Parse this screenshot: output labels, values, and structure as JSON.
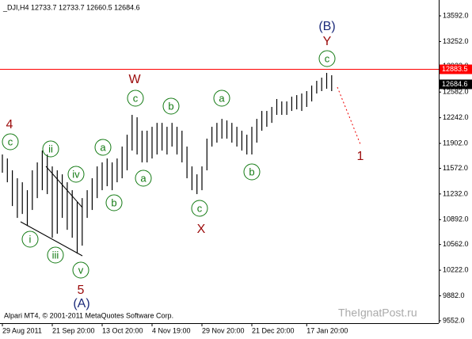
{
  "chart_data": {
    "type": "ohlc",
    "title": "_DJI,H4  12733.7 12733.7 12660.5 12684.6",
    "categories": [
      "29 Aug 2011",
      null,
      null,
      null,
      null,
      null,
      null,
      null,
      null,
      null,
      "21 Sep 20:00",
      null,
      null,
      null,
      null,
      null,
      null,
      null,
      null,
      null,
      "13 Oct 20:00",
      null,
      null,
      null,
      null,
      null,
      null,
      null,
      null,
      null,
      "4 Nov 19:00",
      null,
      null,
      null,
      null,
      null,
      null,
      null,
      null,
      null,
      "29 Nov 20:00",
      null,
      null,
      null,
      null,
      null,
      null,
      null,
      null,
      null,
      "21 Dec 20:00",
      null,
      null,
      null,
      null,
      null,
      null,
      null,
      null,
      null,
      null,
      "17 Jan 20:00",
      null,
      null,
      null,
      null,
      null
    ],
    "high": [
      11755,
      11702,
      11545,
      11440,
      11387,
      11282,
      11545,
      11650,
      11807,
      11755,
      11597,
      11545,
      11492,
      11387,
      11282,
      11125,
      11177,
      11282,
      11440,
      11597,
      11650,
      11702,
      11650,
      11702,
      11860,
      12017,
      12280,
      12248,
      12070,
      12070,
      12122,
      12174,
      12174,
      12122,
      12174,
      12122,
      12070,
      11860,
      11597,
      11492,
      11597,
      11965,
      12122,
      12174,
      12227,
      12206,
      12174,
      12122,
      12070,
      12017,
      12122,
      12227,
      12332,
      12332,
      12385,
      12490,
      12458,
      12458,
      12521,
      12542,
      12563,
      12595,
      12668,
      12731,
      12773,
      12836,
      12805
    ],
    "low": [
      11513,
      11387,
      11072,
      10915,
      10967,
      10810,
      11020,
      11177,
      11282,
      11230,
      10652,
      10705,
      10915,
      10757,
      10652,
      10442,
      10547,
      10915,
      11020,
      11177,
      11282,
      11335,
      11282,
      11387,
      11440,
      11545,
      11807,
      11755,
      11650,
      11650,
      11702,
      11755,
      11807,
      11755,
      11860,
      11755,
      11650,
      11440,
      11282,
      11230,
      11282,
      11545,
      11860,
      11912,
      11965,
      11965,
      11912,
      11860,
      11807,
      11755,
      11755,
      11912,
      12070,
      12122,
      12174,
      12280,
      12280,
      12280,
      12332,
      12353,
      12332,
      12385,
      12458,
      12563,
      12595,
      12626,
      12595
    ],
    "color": "#000000",
    "ylim": [
      9520,
      13802
    ],
    "yticks": [
      {
        "value": 13592,
        "label": "13592.0"
      },
      {
        "value": 13252,
        "label": "13252.0"
      },
      {
        "value": 12922,
        "label": "12922.0"
      },
      {
        "value": 12582,
        "label": "12582.0"
      },
      {
        "value": 12242,
        "label": "12242.0"
      },
      {
        "value": 11902,
        "label": "11902.0"
      },
      {
        "value": 11572,
        "label": "11572.0"
      },
      {
        "value": 11232,
        "label": "11232.0"
      },
      {
        "value": 10892,
        "label": "10892.0"
      },
      {
        "value": 10562,
        "label": "10562.0"
      },
      {
        "value": 10222,
        "label": "10222.0"
      },
      {
        "value": 9882,
        "label": "9882.0"
      },
      {
        "value": 9552,
        "label": "9552.0"
      }
    ],
    "price_lines": [
      {
        "value": 12883.5,
        "color": "#ff0000"
      },
      {
        "value": 12684.6,
        "color": "#000000"
      }
    ],
    "annotations": [
      "4",
      "c",
      "ii",
      "iv",
      "i",
      "iii",
      "v",
      "5",
      "(A)",
      "a",
      "b",
      "c",
      "W",
      "a",
      "b",
      "c",
      "X",
      "a",
      "b",
      "c",
      "Y",
      "(B)",
      "1"
    ],
    "footer": "Alpari MT4, © 2001-2011 MetaQuotes Software Corp.",
    "watermark": "TheIgnatPost.ru"
  }
}
